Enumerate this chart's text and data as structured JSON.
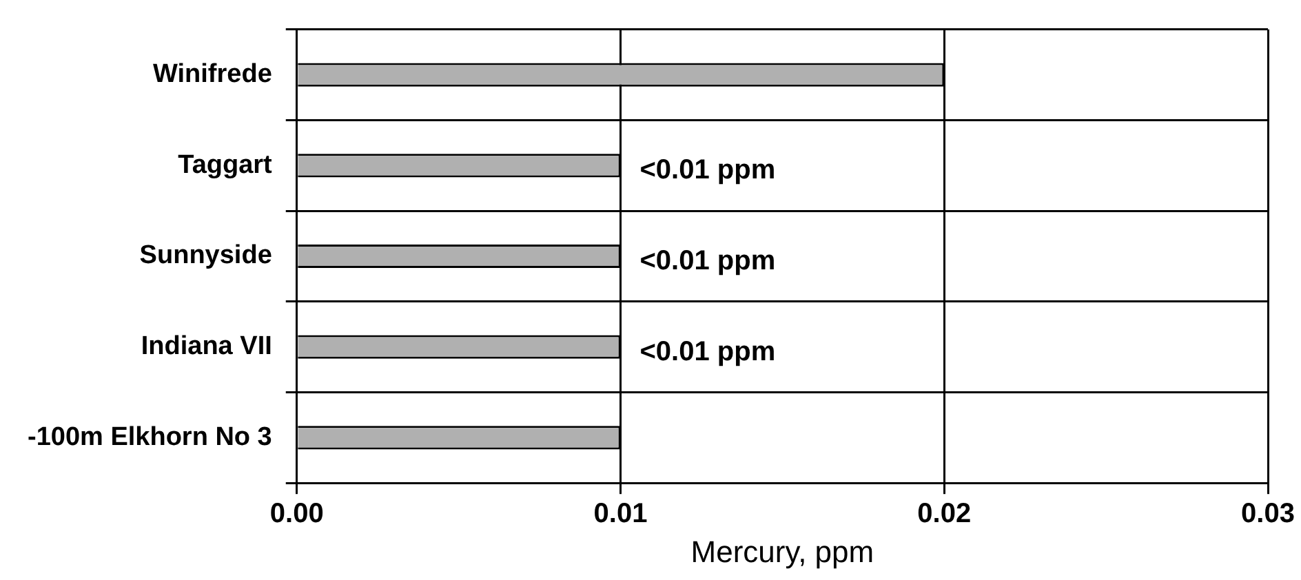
{
  "chart_data": {
    "type": "bar",
    "orientation": "horizontal",
    "xlabel": "Mercury, ppm",
    "categories": [
      "Winifrede",
      "Taggart",
      "Sunnyside",
      "Indiana VII",
      "-100m Elkhorn No 3"
    ],
    "values": [
      0.02,
      0.01,
      0.01,
      0.01,
      0.01
    ],
    "value_labels": [
      null,
      "<0.01 ppm",
      "<0.01 ppm",
      "<0.01 ppm",
      null
    ],
    "color": "#b0b0b0",
    "xlim": [
      0,
      0.03
    ],
    "xticks": [
      {
        "value": 0,
        "label": "0.00"
      },
      {
        "value": 0.01,
        "label": "0.01"
      },
      {
        "value": 0.02,
        "label": "0.02"
      },
      {
        "value": 0.03,
        "label": "0.03"
      }
    ],
    "grid": true,
    "legend": false
  }
}
